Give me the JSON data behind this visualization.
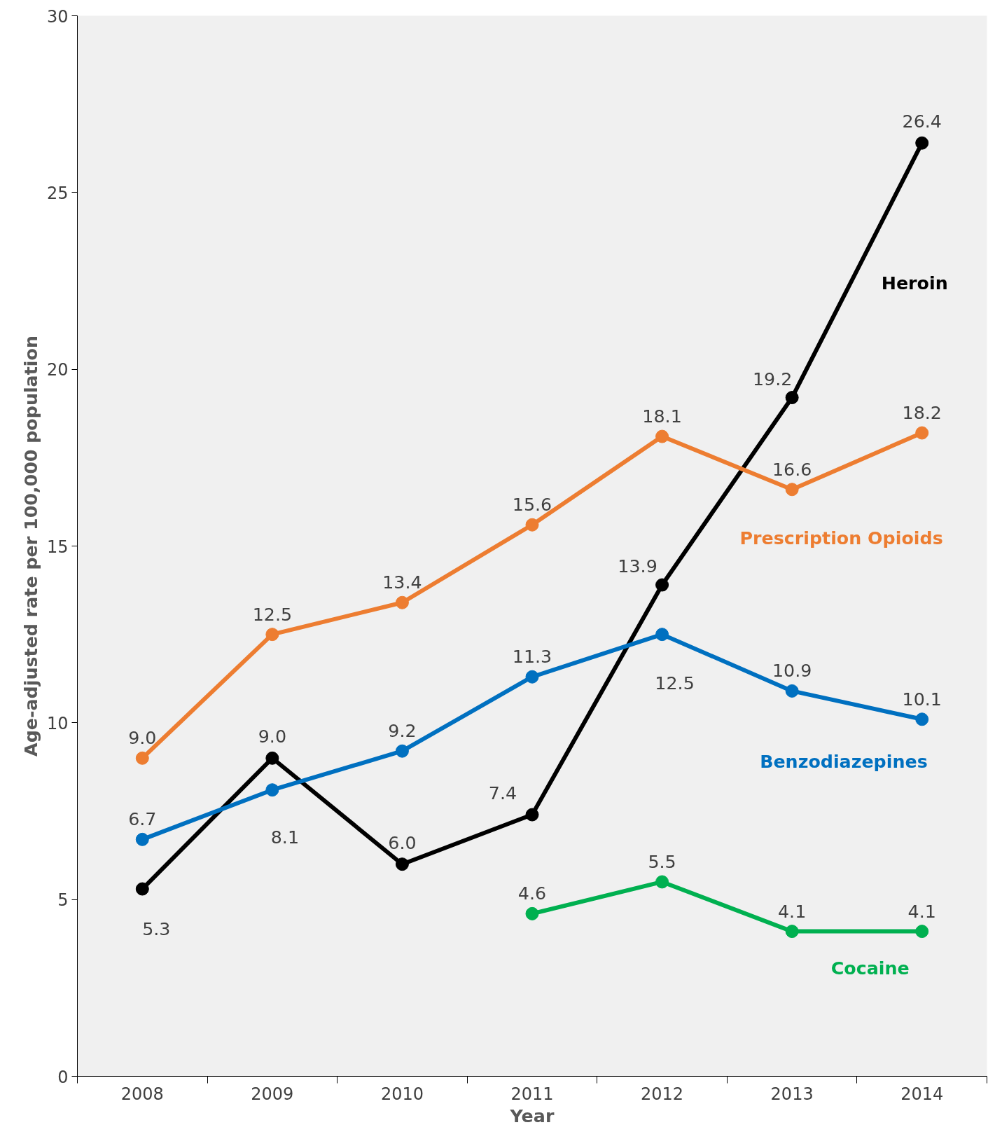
{
  "chart_data": {
    "type": "line",
    "xlabel": "Year",
    "ylabel": "Age-adjusted rate per 100,000 population",
    "categories": [
      "2008",
      "2009",
      "2010",
      "2011",
      "2012",
      "2013",
      "2014"
    ],
    "series": [
      {
        "name": "Heroin",
        "color": "#000000",
        "values": [
          5.3,
          9.0,
          6.0,
          7.4,
          13.9,
          19.2,
          26.4
        ],
        "value_labels": [
          "5.3",
          "9.0",
          "6.0",
          "7.4",
          "13.9",
          "19.2",
          "26.4"
        ]
      },
      {
        "name": "Prescription Opioids",
        "color": "#ed7d31",
        "values": [
          9.0,
          12.5,
          13.4,
          15.6,
          18.1,
          16.6,
          18.2
        ],
        "value_labels": [
          "9.0",
          "12.5",
          "13.4",
          "15.6",
          "18.1",
          "16.6",
          "18.2"
        ]
      },
      {
        "name": "Benzodiazepines",
        "color": "#0070c0",
        "values": [
          6.7,
          8.1,
          9.2,
          11.3,
          12.5,
          10.9,
          10.1
        ],
        "value_labels": [
          "6.7",
          "8.1",
          "9.2",
          "11.3",
          "12.5",
          "10.9",
          "10.1"
        ]
      },
      {
        "name": "Cocaine",
        "color": "#00b050",
        "values": [
          null,
          null,
          null,
          4.6,
          5.5,
          4.1,
          4.1
        ],
        "value_labels": [
          null,
          null,
          null,
          "4.6",
          "5.5",
          "4.1",
          "4.1"
        ]
      }
    ],
    "ylim": [
      0,
      30
    ],
    "yticks": [
      0,
      5,
      10,
      15,
      20,
      25,
      30
    ],
    "grid": false,
    "marker": "circle",
    "line_style": "solid"
  }
}
